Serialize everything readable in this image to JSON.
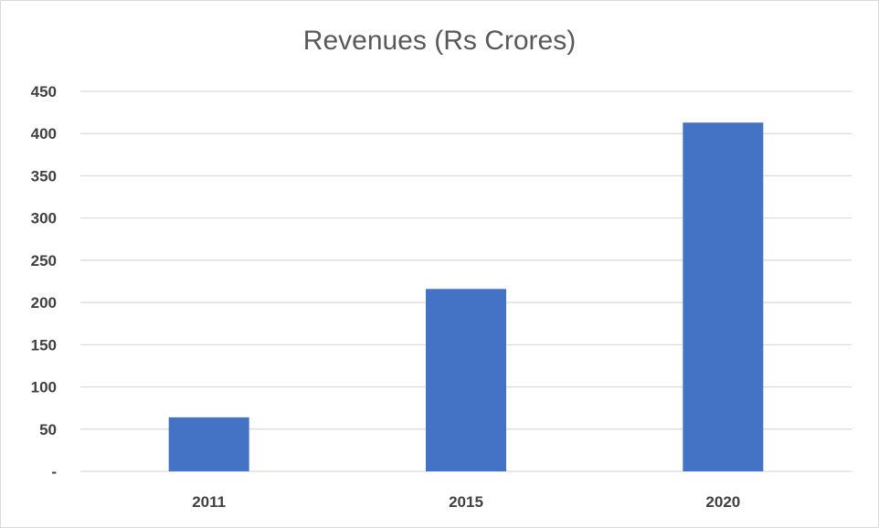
{
  "chart_data": {
    "type": "bar",
    "title": "Revenues (Rs Crores)",
    "categories": [
      "2011",
      "2015",
      "2020"
    ],
    "values": [
      64,
      216,
      413
    ],
    "xlabel": "",
    "ylabel": "",
    "ylim": [
      0,
      450
    ],
    "yticks": [
      0,
      50,
      100,
      150,
      200,
      250,
      300,
      350,
      400,
      450
    ],
    "ytick_labels": [
      "-",
      "50",
      "100",
      "150",
      "200",
      "250",
      "300",
      "350",
      "400",
      "450"
    ],
    "grid": true,
    "legend": "none",
    "bar_color": "#4472c4"
  }
}
